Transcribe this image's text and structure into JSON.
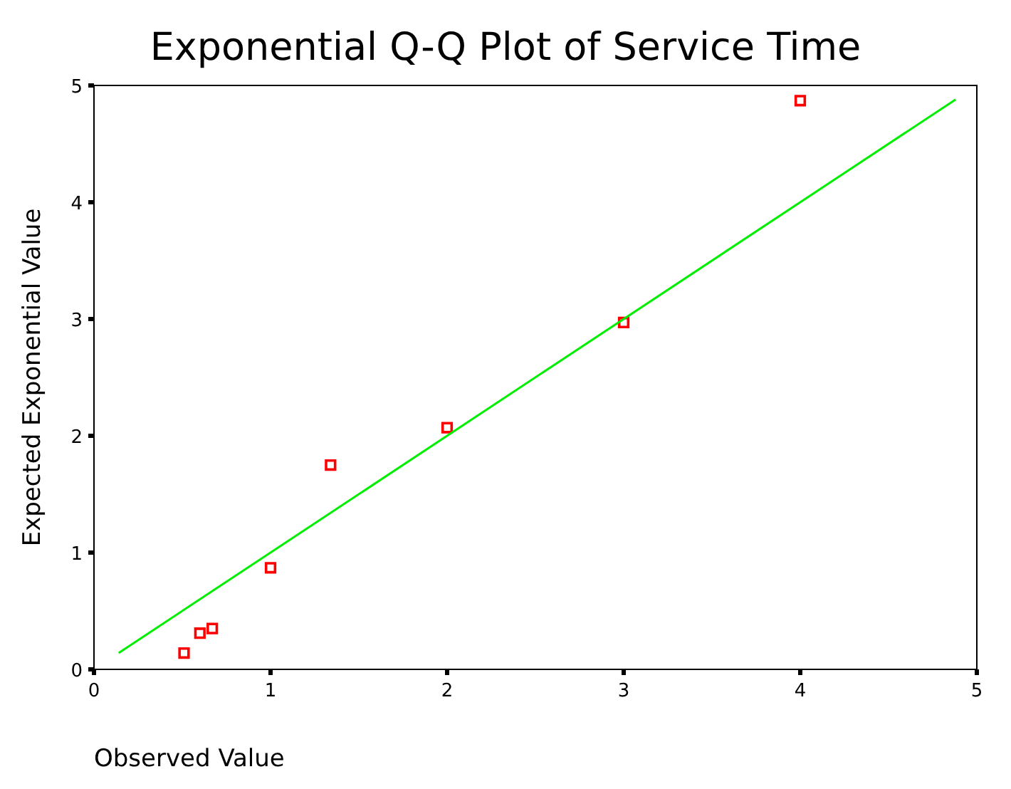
{
  "chart_data": {
    "type": "scatter",
    "title": "Exponential Q-Q Plot of Service Time",
    "xlabel": "Observed Value",
    "ylabel": "Expected Exponential Value",
    "xlim": [
      0,
      5
    ],
    "ylim": [
      0,
      5
    ],
    "xticks": [
      0,
      1,
      2,
      3,
      4,
      5
    ],
    "yticks": [
      0,
      1,
      2,
      3,
      4,
      5
    ],
    "grid": false,
    "marker": "square",
    "series": [
      {
        "color": "#ff0000",
        "x": [
          0.51,
          0.6,
          0.67,
          1.0,
          1.34,
          2.0,
          3.0,
          4.0
        ],
        "values": [
          0.14,
          0.31,
          0.35,
          0.87,
          1.75,
          2.07,
          2.97,
          4.87
        ]
      },
      {
        "type": "line",
        "color": "#00ee00",
        "marker": "none",
        "x": [
          0.14,
          4.88
        ],
        "values": [
          0.14,
          4.88
        ]
      }
    ]
  }
}
